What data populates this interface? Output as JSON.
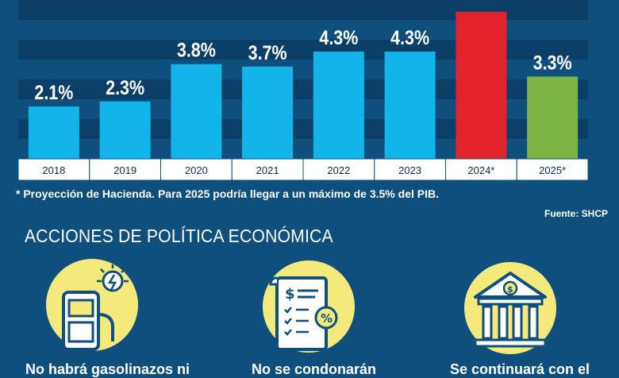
{
  "chart_data": {
    "type": "bar",
    "categories": [
      "2018",
      "2019",
      "2020",
      "2021",
      "2022",
      "2023",
      "2024*",
      "2025*"
    ],
    "values": [
      2.1,
      2.3,
      3.8,
      3.7,
      4.3,
      4.3,
      5.9,
      3.3
    ],
    "labels": [
      "2.1%",
      "2.3%",
      "3.8%",
      "3.7%",
      "4.3%",
      "4.3%",
      "",
      "3.3%"
    ],
    "colors": [
      "#12b5ea",
      "#12b5ea",
      "#12b5ea",
      "#12b5ea",
      "#12b5ea",
      "#12b5ea",
      "#e3242b",
      "#7cb544"
    ],
    "ylim": [
      0,
      6.5
    ],
    "grid": true
  },
  "footnote": "* Proyección de Hacienda. Para 2025 podría llegar a un máximo de 3.5% del PIB.",
  "source": "Fuente: SHCP",
  "section": {
    "title": "ACCIONES DE POLÍTICA ECONÓMICA",
    "actions": [
      {
        "icon": "gas-pump-icon",
        "text": "No habrá gasolinazos ni"
      },
      {
        "icon": "receipt-icon",
        "text": "No se condonarán"
      },
      {
        "icon": "bank-icon",
        "text": "Se continuará con el"
      }
    ]
  }
}
